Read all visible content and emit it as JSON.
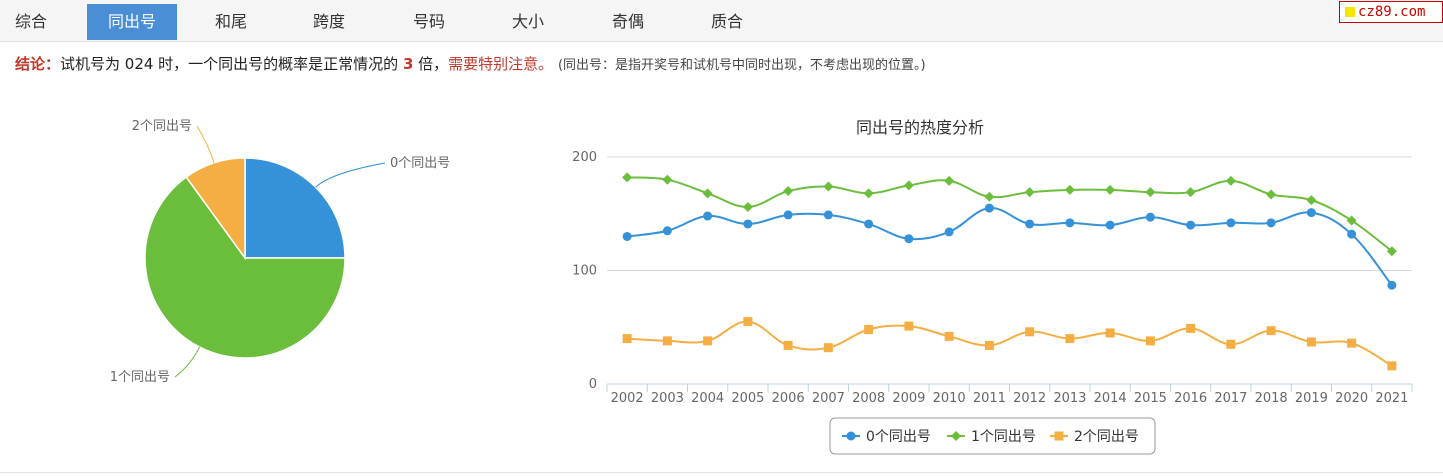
{
  "tabs": [
    {
      "label": "综合",
      "active": false
    },
    {
      "label": "同出号",
      "active": true
    },
    {
      "label": "和尾",
      "active": false
    },
    {
      "label": "跨度",
      "active": false
    },
    {
      "label": "号码",
      "active": false
    },
    {
      "label": "大小",
      "active": false
    },
    {
      "label": "奇偶",
      "active": false
    },
    {
      "label": "质合",
      "active": false
    }
  ],
  "logo": {
    "text": "cz89.com"
  },
  "conclusion": {
    "lead": "结论：",
    "text1": "试机号为 024 时，一个同出号的概率是正常情况的 ",
    "times": "3",
    "text2": " 倍，",
    "warn": "需要特别注意。",
    "note": "(同出号：是指开奖号和试机号中同时出现，不考虑出现的位置。)"
  },
  "pie": {
    "slices": [
      {
        "label": "0个同出号",
        "value": 25,
        "color": "#3592d8"
      },
      {
        "label": "1个同出号",
        "value": 65,
        "color": "#6bbd3c"
      },
      {
        "label": "2个同出号",
        "value": 10,
        "color": "#f5ae44"
      }
    ]
  },
  "chart_data": {
    "type": "line",
    "title": "同出号的热度分析",
    "x": [
      "2002",
      "2003",
      "2004",
      "2005",
      "2006",
      "2007",
      "2008",
      "2009",
      "2010",
      "2011",
      "2012",
      "2013",
      "2014",
      "2015",
      "2016",
      "2017",
      "2018",
      "2019",
      "2020",
      "2021"
    ],
    "ylim": [
      0,
      200
    ],
    "yticks": [
      0,
      100,
      200
    ],
    "grid": true,
    "legend": "bottom",
    "series": [
      {
        "name": "0个同出号",
        "color": "#3592d8",
        "marker": "circle",
        "values": [
          130,
          135,
          148,
          141,
          149,
          149,
          141,
          128,
          134,
          155,
          141,
          142,
          140,
          147,
          140,
          142,
          142,
          151,
          132,
          87
        ]
      },
      {
        "name": "1个同出号",
        "color": "#6bbd3c",
        "marker": "diamond",
        "values": [
          182,
          180,
          168,
          156,
          170,
          174,
          168,
          175,
          179,
          165,
          169,
          171,
          171,
          169,
          169,
          179,
          167,
          162,
          144,
          117
        ]
      },
      {
        "name": "2个同出号",
        "color": "#f5ae44",
        "marker": "square",
        "values": [
          40,
          38,
          38,
          55,
          34,
          32,
          48,
          51,
          42,
          34,
          46,
          40,
          45,
          38,
          49,
          35,
          47,
          37,
          36,
          16
        ]
      }
    ]
  }
}
